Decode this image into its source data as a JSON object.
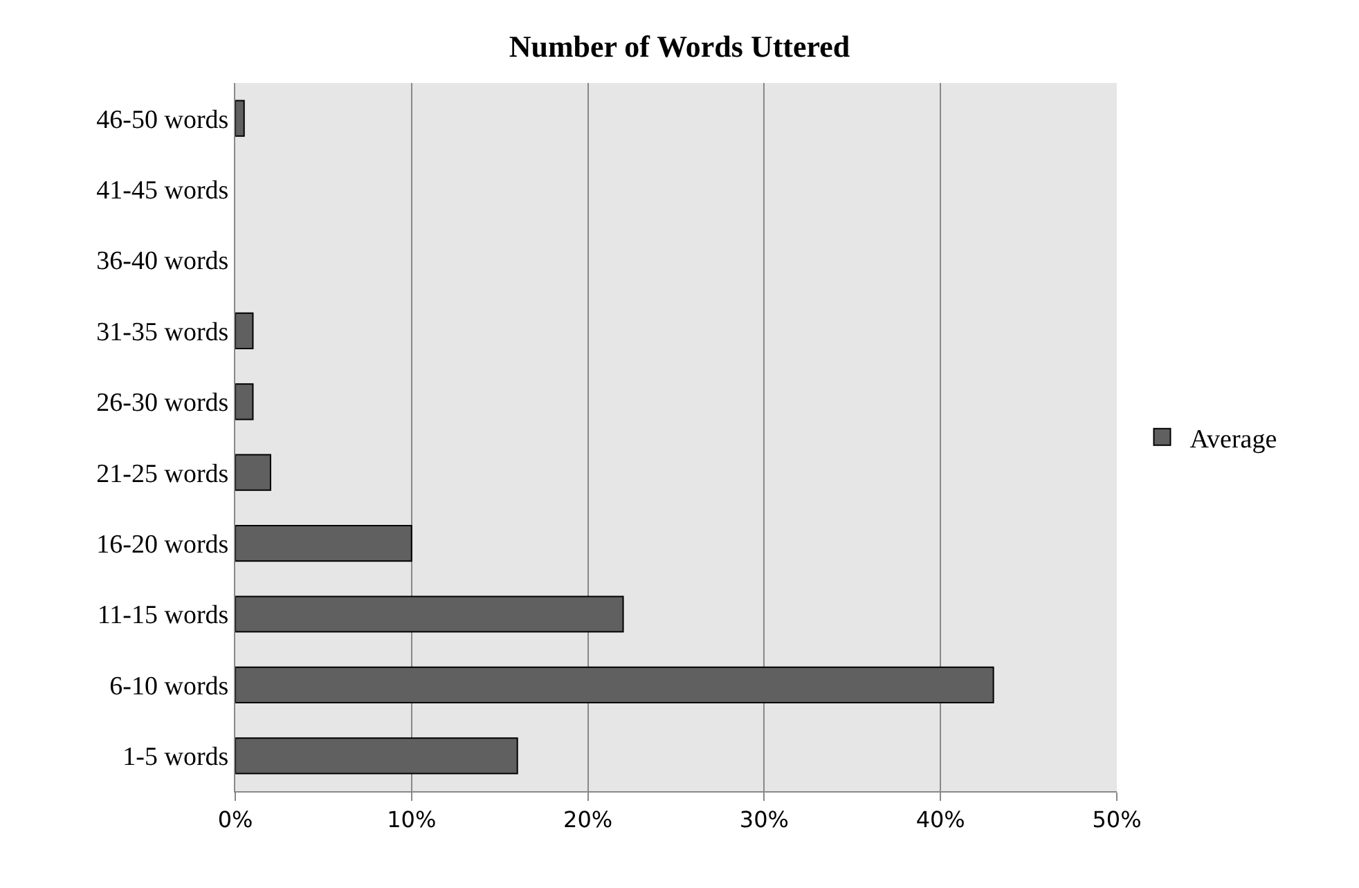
{
  "chart_data": {
    "type": "bar",
    "orientation": "horizontal",
    "title": "Number of Words Uttered",
    "categories": [
      "46-50 words",
      "41-45 words",
      "36-40 words",
      "31-35 words",
      "26-30 words",
      "21-25 words",
      "16-20 words",
      "11-15 words",
      "6-10 words",
      "1-5 words"
    ],
    "series": [
      {
        "name": "Average",
        "color": "#606060",
        "values": [
          0.5,
          0,
          0,
          1,
          1,
          2,
          10,
          22,
          43,
          16
        ]
      }
    ],
    "xlim": [
      0,
      50
    ],
    "xticks": [
      {
        "value": 0,
        "label": "0%"
      },
      {
        "value": 10,
        "label": "10%"
      },
      {
        "value": 20,
        "label": "20%"
      },
      {
        "value": 30,
        "label": "30%"
      },
      {
        "value": 40,
        "label": "40%"
      },
      {
        "value": 50,
        "label": "50%"
      }
    ],
    "grid": "x",
    "legend": "right"
  }
}
